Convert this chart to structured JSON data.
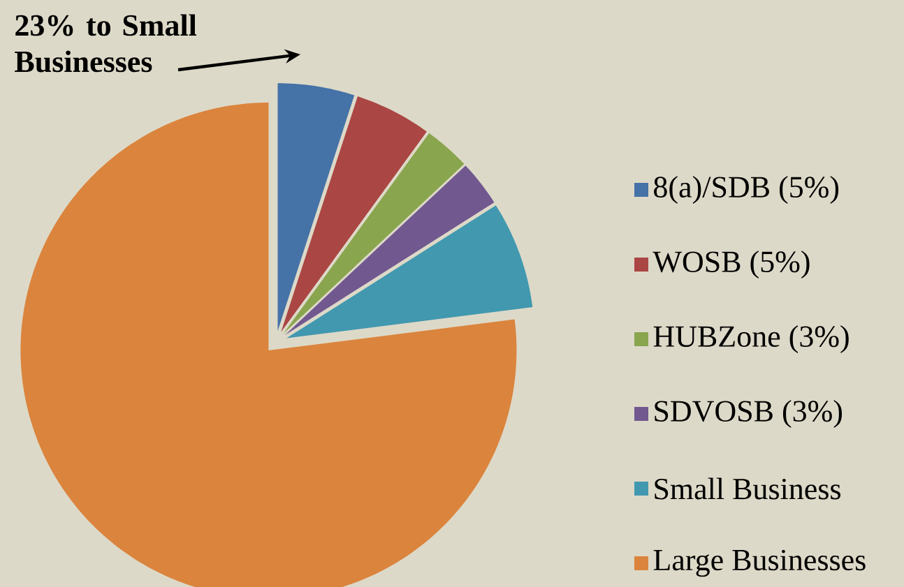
{
  "chart_data": {
    "type": "pie",
    "categories": [
      "8(a)/SDB (5%)",
      "WOSB (5%)",
      "HUBZone (3%)",
      "SDVOSB (3%)",
      "Small Business",
      "Large Businesses"
    ],
    "values": [
      5,
      5,
      3,
      3,
      7,
      77
    ],
    "colors": [
      "#4572a7",
      "#aa4643",
      "#89a54e",
      "#71588f",
      "#4198af",
      "#db843d"
    ],
    "legend": "right",
    "annotations": [
      "23% to Small Businesses"
    ]
  }
}
